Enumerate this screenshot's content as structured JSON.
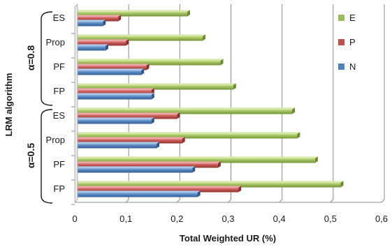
{
  "chart_data": {
    "type": "bar",
    "orientation": "horizontal",
    "xlabel": "Total Weighted UR (%)",
    "ylabel": "LRM algorithm",
    "xlim": [
      0,
      0.6
    ],
    "xticks": [
      "0",
      "0,1",
      "0,2",
      "0,3",
      "0,4",
      "0,5",
      "0,6"
    ],
    "grid": "vertical",
    "legend_position": "right",
    "groups": [
      {
        "label": "α=0.8",
        "categories": [
          "ES",
          "Prop",
          "PF",
          "FP"
        ],
        "series": [
          {
            "name": "E",
            "values": [
              0.22,
              0.25,
              0.285,
              0.31
            ]
          },
          {
            "name": "P",
            "values": [
              0.085,
              0.1,
              0.14,
              0.15
            ]
          },
          {
            "name": "N",
            "values": [
              0.055,
              0.06,
              0.13,
              0.15
            ]
          }
        ]
      },
      {
        "label": "α=0.5",
        "categories": [
          "ES",
          "Prop",
          "PF",
          "FP"
        ],
        "series": [
          {
            "name": "E",
            "values": [
              0.425,
              0.435,
              0.47,
              0.52
            ]
          },
          {
            "name": "P",
            "values": [
              0.2,
              0.21,
              0.28,
              0.32
            ]
          },
          {
            "name": "N",
            "values": [
              0.15,
              0.16,
              0.23,
              0.24
            ]
          }
        ]
      }
    ],
    "colors": {
      "E": "#9bbb59",
      "P": "#c0504d",
      "N": "#4f81bd"
    }
  }
}
